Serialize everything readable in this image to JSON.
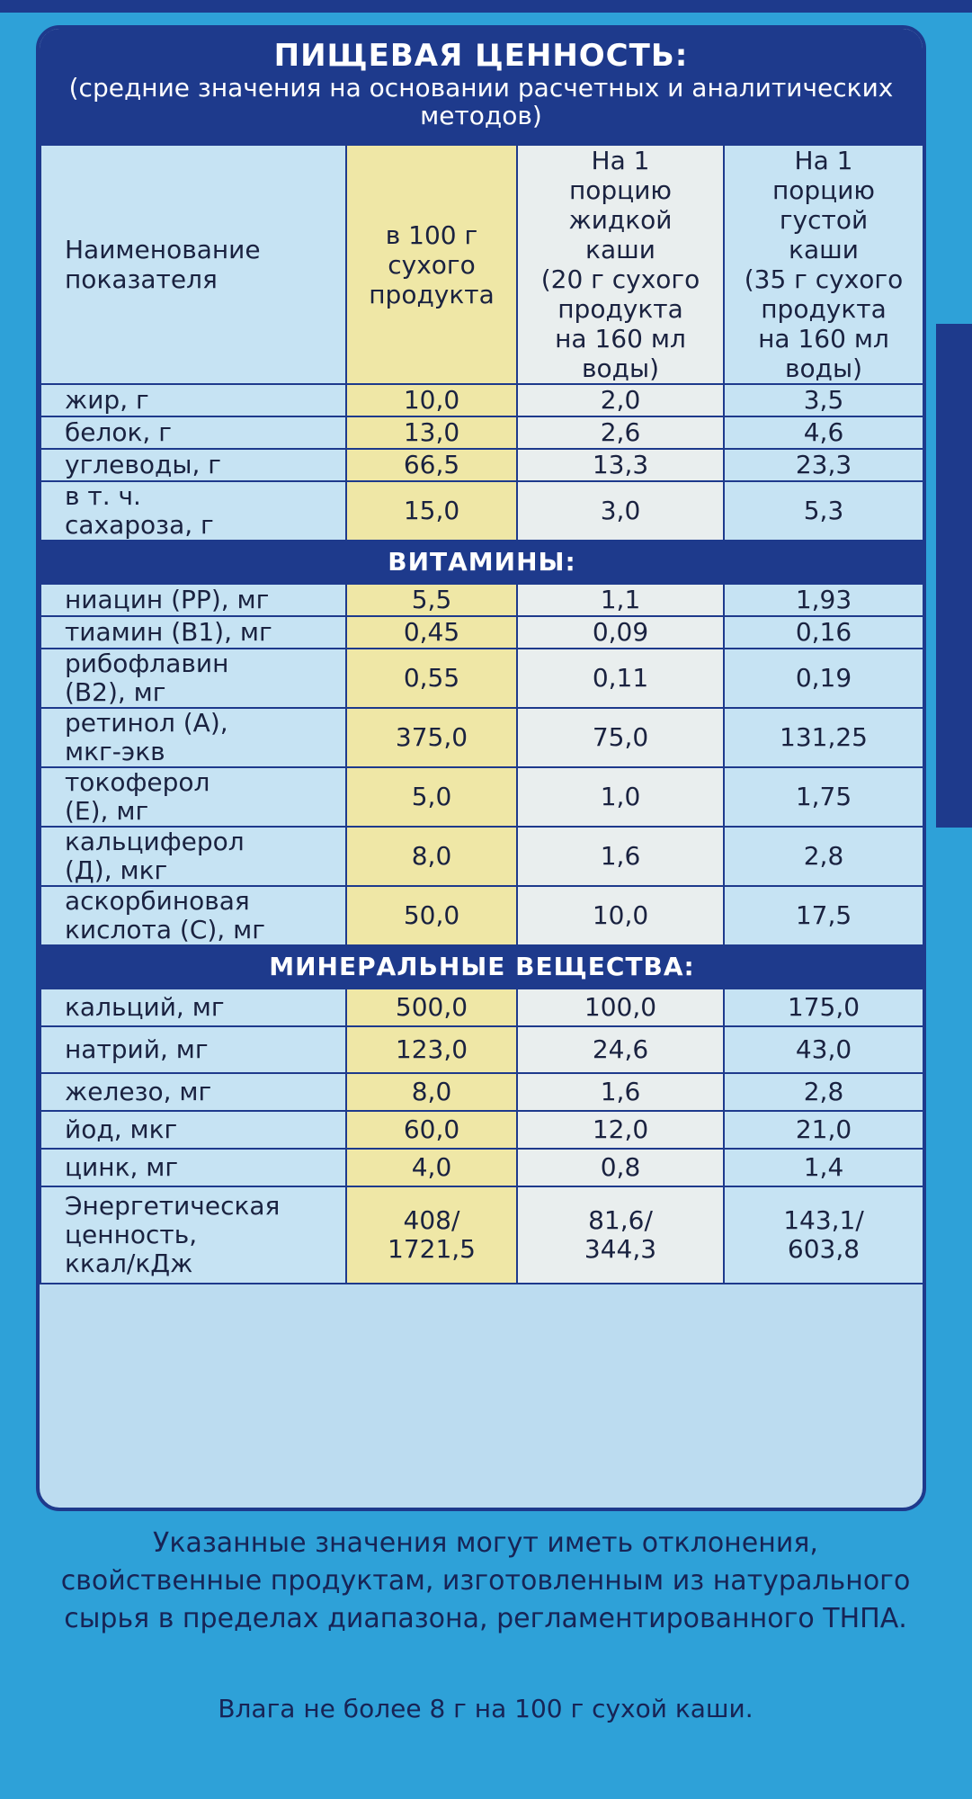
{
  "header": {
    "title": "ПИЩЕВАЯ ЦЕННОСТЬ:",
    "subtitle": "(средние значения на основании расчетных и аналитических методов)"
  },
  "columns": {
    "name": "Наименование\nпоказателя",
    "per100": "в 100 г\nсухого\nпродукта",
    "liquid": "На 1\nпорцию\nжидкой\nкаши\n(20 г сухого\nпродукта\nна 160 мл\nводы)",
    "thick": "На 1\nпорцию\nгустой\nкаши\n(35 г сухого\nпродукта\nна 160 мл\nводы)"
  },
  "basic": [
    {
      "name": "жир, г",
      "v1": "10,0",
      "v2": "2,0",
      "v3": "3,5"
    },
    {
      "name": "белок, г",
      "v1": "13,0",
      "v2": "2,6",
      "v3": "4,6"
    },
    {
      "name": "углеводы, г",
      "v1": "66,5",
      "v2": "13,3",
      "v3": "23,3"
    },
    {
      "name": "в т. ч.\nсахароза, г",
      "v1": "15,0",
      "v2": "3,0",
      "v3": "5,3"
    }
  ],
  "vitamins_title": "ВИТАМИНЫ:",
  "vitamins": [
    {
      "name": "ниацин (РР), мг",
      "v1": "5,5",
      "v2": "1,1",
      "v3": "1,93"
    },
    {
      "name": "тиамин (B1), мг",
      "v1": "0,45",
      "v2": "0,09",
      "v3": "0,16"
    },
    {
      "name": "рибофлавин\n(B2), мг",
      "v1": "0,55",
      "v2": "0,11",
      "v3": "0,19"
    },
    {
      "name": "ретинол (А),\nмкг-экв",
      "v1": "375,0",
      "v2": "75,0",
      "v3": "131,25"
    },
    {
      "name": "токоферол\n(Е), мг",
      "v1": "5,0",
      "v2": "1,0",
      "v3": "1,75"
    },
    {
      "name": "кальциферол\n(Д), мкг",
      "v1": "8,0",
      "v2": "1,6",
      "v3": "2,8"
    },
    {
      "name": "аскорбиновая\nкислота (С), мг",
      "v1": "50,0",
      "v2": "10,0",
      "v3": "17,5"
    }
  ],
  "minerals_title": "МИНЕРАЛЬНЫЕ  ВЕЩЕСТВА:",
  "minerals": [
    {
      "name": "кальций, мг",
      "v1": "500,0",
      "v2": "100,0",
      "v3": "175,0"
    },
    {
      "name": "натрий, мг",
      "v1": "123,0",
      "v2": "24,6",
      "v3": "43,0"
    },
    {
      "name": "железо, мг",
      "v1": "8,0",
      "v2": "1,6",
      "v3": "2,8"
    },
    {
      "name": "йод, мкг",
      "v1": "60,0",
      "v2": "12,0",
      "v3": "21,0"
    },
    {
      "name": "цинк, мг",
      "v1": "4,0",
      "v2": "0,8",
      "v3": "1,4"
    },
    {
      "name": "Энергетическая\nценность,\nккал/кДж",
      "v1": "408/\n1721,5",
      "v2": "81,6/\n344,3",
      "v3": "143,1/\n603,8"
    }
  ],
  "note": "Указанные значения могут иметь отклонения, свойственные продуктам, изготовленным из натурального сырья в пределах диапазона, регламентированного ТНПА.",
  "note2": "Влага не более 8 г на 100 г сухой каши."
}
